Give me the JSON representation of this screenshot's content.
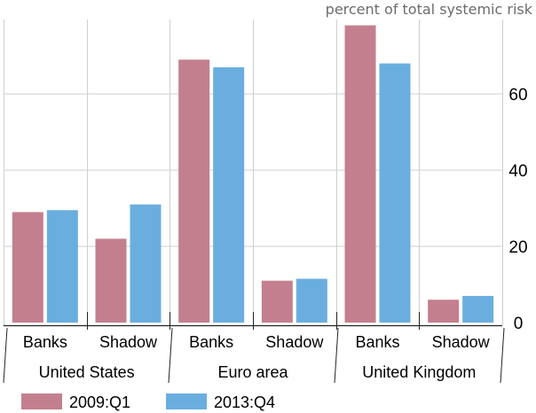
{
  "chart_data": {
    "type": "bar",
    "unit_label": "percent of total systemic risk",
    "groups": [
      {
        "label": "United States",
        "categories": [
          "Banks",
          "Shadow"
        ]
      },
      {
        "label": "Euro area",
        "categories": [
          "Banks",
          "Shadow"
        ]
      },
      {
        "label": "United Kingdom",
        "categories": [
          "Banks",
          "Shadow"
        ]
      }
    ],
    "categories": [
      "Banks",
      "Shadow",
      "Banks",
      "Shadow",
      "Banks",
      "Shadow"
    ],
    "series": [
      {
        "name": "2009:Q1",
        "color": "#c47f8e",
        "values": [
          29,
          22,
          69,
          11,
          78,
          6
        ]
      },
      {
        "name": "2013:Q4",
        "color": "#6aaee0",
        "values": [
          29.5,
          31,
          67,
          11.5,
          68,
          7
        ]
      }
    ],
    "yticks": [
      0,
      20,
      40,
      60
    ],
    "ylim": [
      -2,
      80
    ],
    "grid": true,
    "axis_side": "right",
    "legend_position": "bottom-left"
  }
}
